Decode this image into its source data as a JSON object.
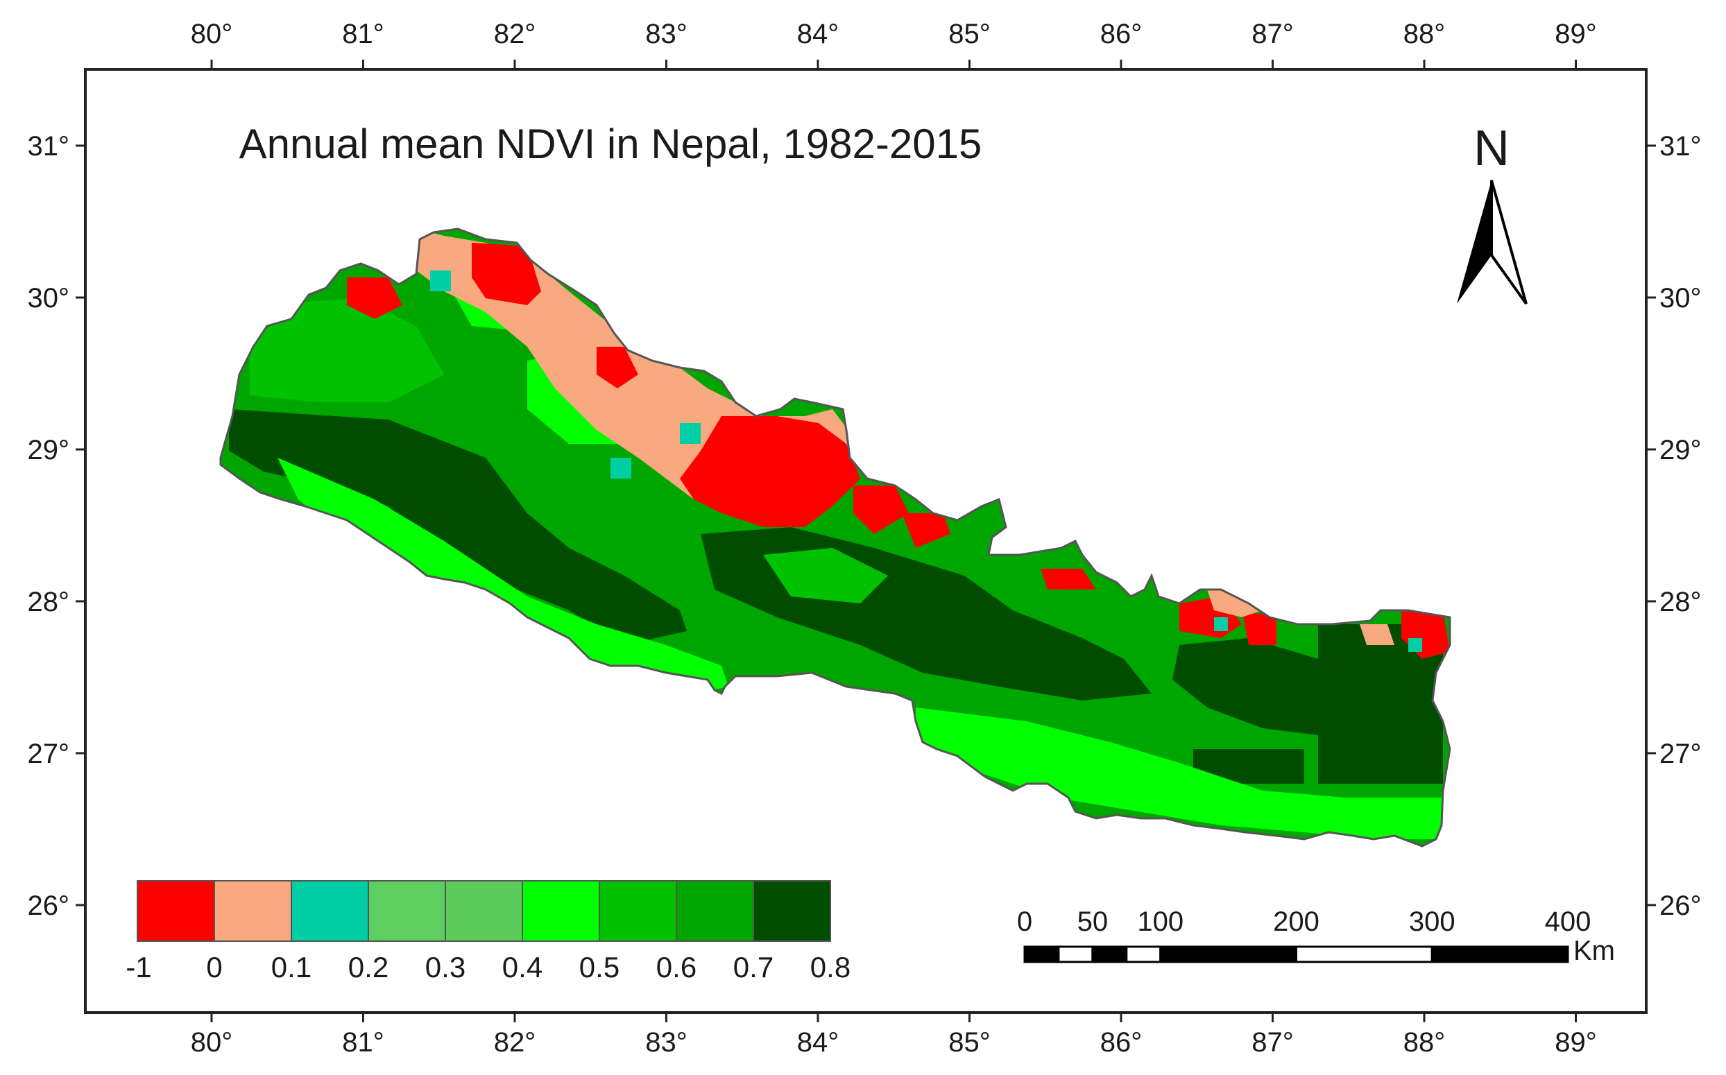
{
  "title": "Annual mean NDVI in Nepal, 1982-2015",
  "north_label": "N",
  "x_ticks": [
    "80°",
    "81°",
    "82°",
    "83°",
    "84°",
    "85°",
    "86°",
    "87°",
    "88°",
    "89°"
  ],
  "y_ticks": [
    "31°",
    "30°",
    "29°",
    "28°",
    "27°",
    "26°"
  ],
  "legend": {
    "colors": [
      "#ff0000",
      "#f8a980",
      "#00cfa5",
      "#5dcf60",
      "#5ccd5a",
      "#00ff00",
      "#00c200",
      "#00a600",
      "#004d00"
    ],
    "labels": [
      "-1",
      "0",
      "0.1",
      "0.2",
      "0.3",
      "0.4",
      "0.5",
      "0.6",
      "0.7",
      "0.8"
    ]
  },
  "scale_bar": {
    "labels": [
      "0",
      "50",
      "100",
      "200",
      "300",
      "400"
    ],
    "unit": "Km"
  },
  "colors": {
    "frame": "#222222",
    "boundary": "#555555"
  },
  "map_data": {
    "x_range_deg": [
      79.0,
      89.5
    ],
    "y_range_deg": [
      25.2,
      31.7
    ],
    "ndvi_regions": [
      {
        "class": "0.6-0.7",
        "color": "#00a600"
      },
      {
        "class": "0.7-0.8",
        "color": "#004d00"
      },
      {
        "class": "0.5-0.6",
        "color": "#00c200"
      },
      {
        "class": "0.4-0.5",
        "color": "#00ff00"
      },
      {
        "class": "0-0.1",
        "color": "#f8a980"
      },
      {
        "class": "-1-0",
        "color": "#ff0000"
      },
      {
        "class": "0.1-0.2",
        "color": "#00cfa5"
      }
    ]
  }
}
